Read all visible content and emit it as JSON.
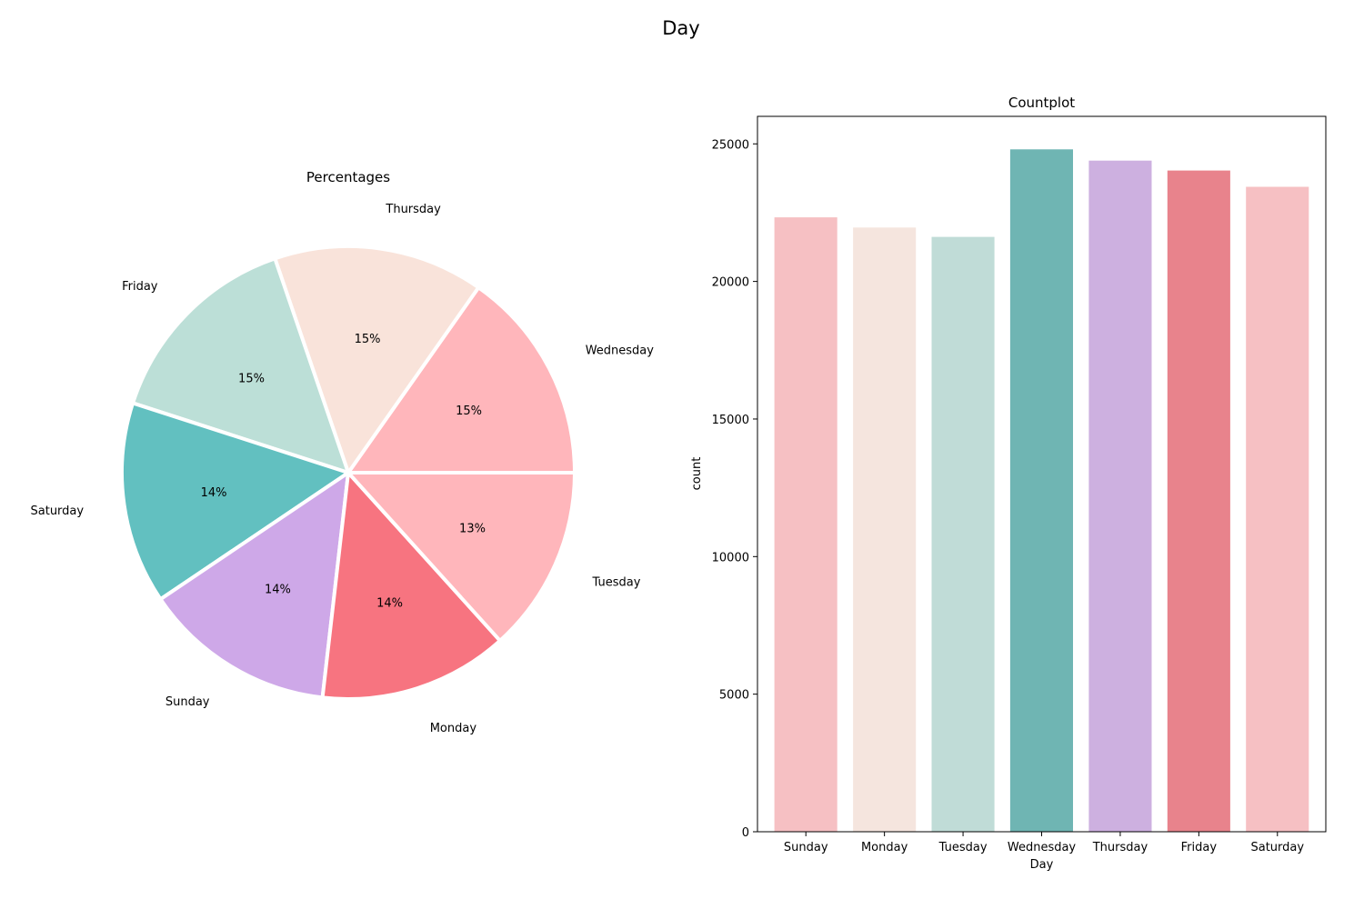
{
  "figure": {
    "suptitle": "Day"
  },
  "chart_data": [
    {
      "type": "pie",
      "title": "Percentages",
      "labels": [
        "Wednesday",
        "Thursday",
        "Friday",
        "Saturday",
        "Sunday",
        "Monday",
        "Tuesday"
      ],
      "values": [
        24790,
        24390,
        24020,
        23440,
        22340,
        21960,
        21640
      ],
      "pct_labels": [
        "15%",
        "15%",
        "15%",
        "14%",
        "14%",
        "14%",
        "13%"
      ],
      "colors": [
        "#ffb6bb",
        "#f9e3da",
        "#bcdfd7",
        "#62c0c0",
        "#cea8e8",
        "#f77480",
        "#ffb6bb"
      ],
      "edge_color": "#ffffff"
    },
    {
      "type": "bar",
      "title": "Countplot",
      "categories": [
        "Sunday",
        "Monday",
        "Tuesday",
        "Wednesday",
        "Thursday",
        "Friday",
        "Saturday"
      ],
      "values": [
        22330,
        21960,
        21620,
        24800,
        24390,
        24030,
        23440
      ],
      "xlabel": "Day",
      "ylabel": "count",
      "ylim": [
        0,
        26000
      ],
      "yticks": [
        0,
        5000,
        10000,
        15000,
        20000,
        25000
      ],
      "colors": [
        "#f6c0c3",
        "#f5e5de",
        "#c0dcd7",
        "#6fb5b3",
        "#cdb0e0",
        "#e8838c",
        "#f6c0c3"
      ],
      "grid": false
    }
  ]
}
